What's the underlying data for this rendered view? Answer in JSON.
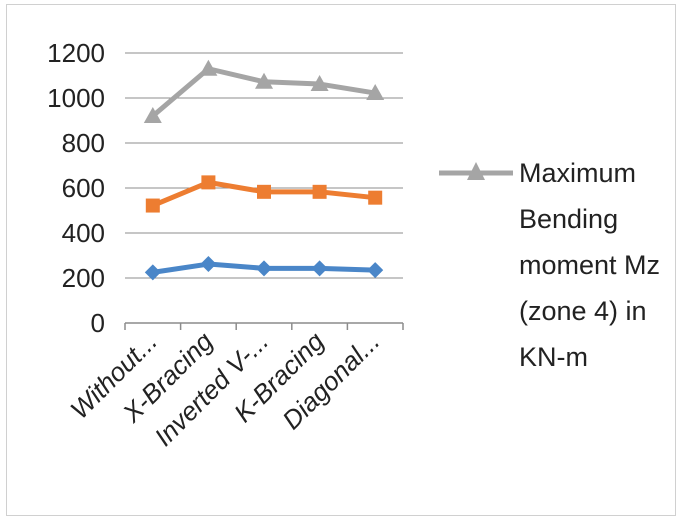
{
  "chart_data": {
    "type": "line",
    "categories": [
      "Without...",
      "X-Bracing",
      "Inverted V-...",
      "K-Bracing",
      "Diagonal..."
    ],
    "ylim": [
      0,
      1200
    ],
    "yticks": [
      0,
      200,
      400,
      600,
      800,
      1000,
      1200
    ],
    "grid": true,
    "legend_position": "right",
    "series": [
      {
        "color": "#4a86c8",
        "marker": "diamond",
        "values": [
          225,
          262,
          243,
          243,
          235
        ]
      },
      {
        "color": "#ed7d31",
        "marker": "square",
        "values": [
          522,
          625,
          583,
          583,
          557
        ]
      },
      {
        "name": "Maximum Bending moment Mz (zone 4) in KN-m",
        "color": "#a5a5a5",
        "marker": "triangle",
        "values": [
          920,
          1130,
          1072,
          1062,
          1022
        ]
      }
    ]
  },
  "legend": {
    "label": "Maximum Bending moment Mz (zone 4) in KN-m",
    "color": "#a5a5a5"
  }
}
